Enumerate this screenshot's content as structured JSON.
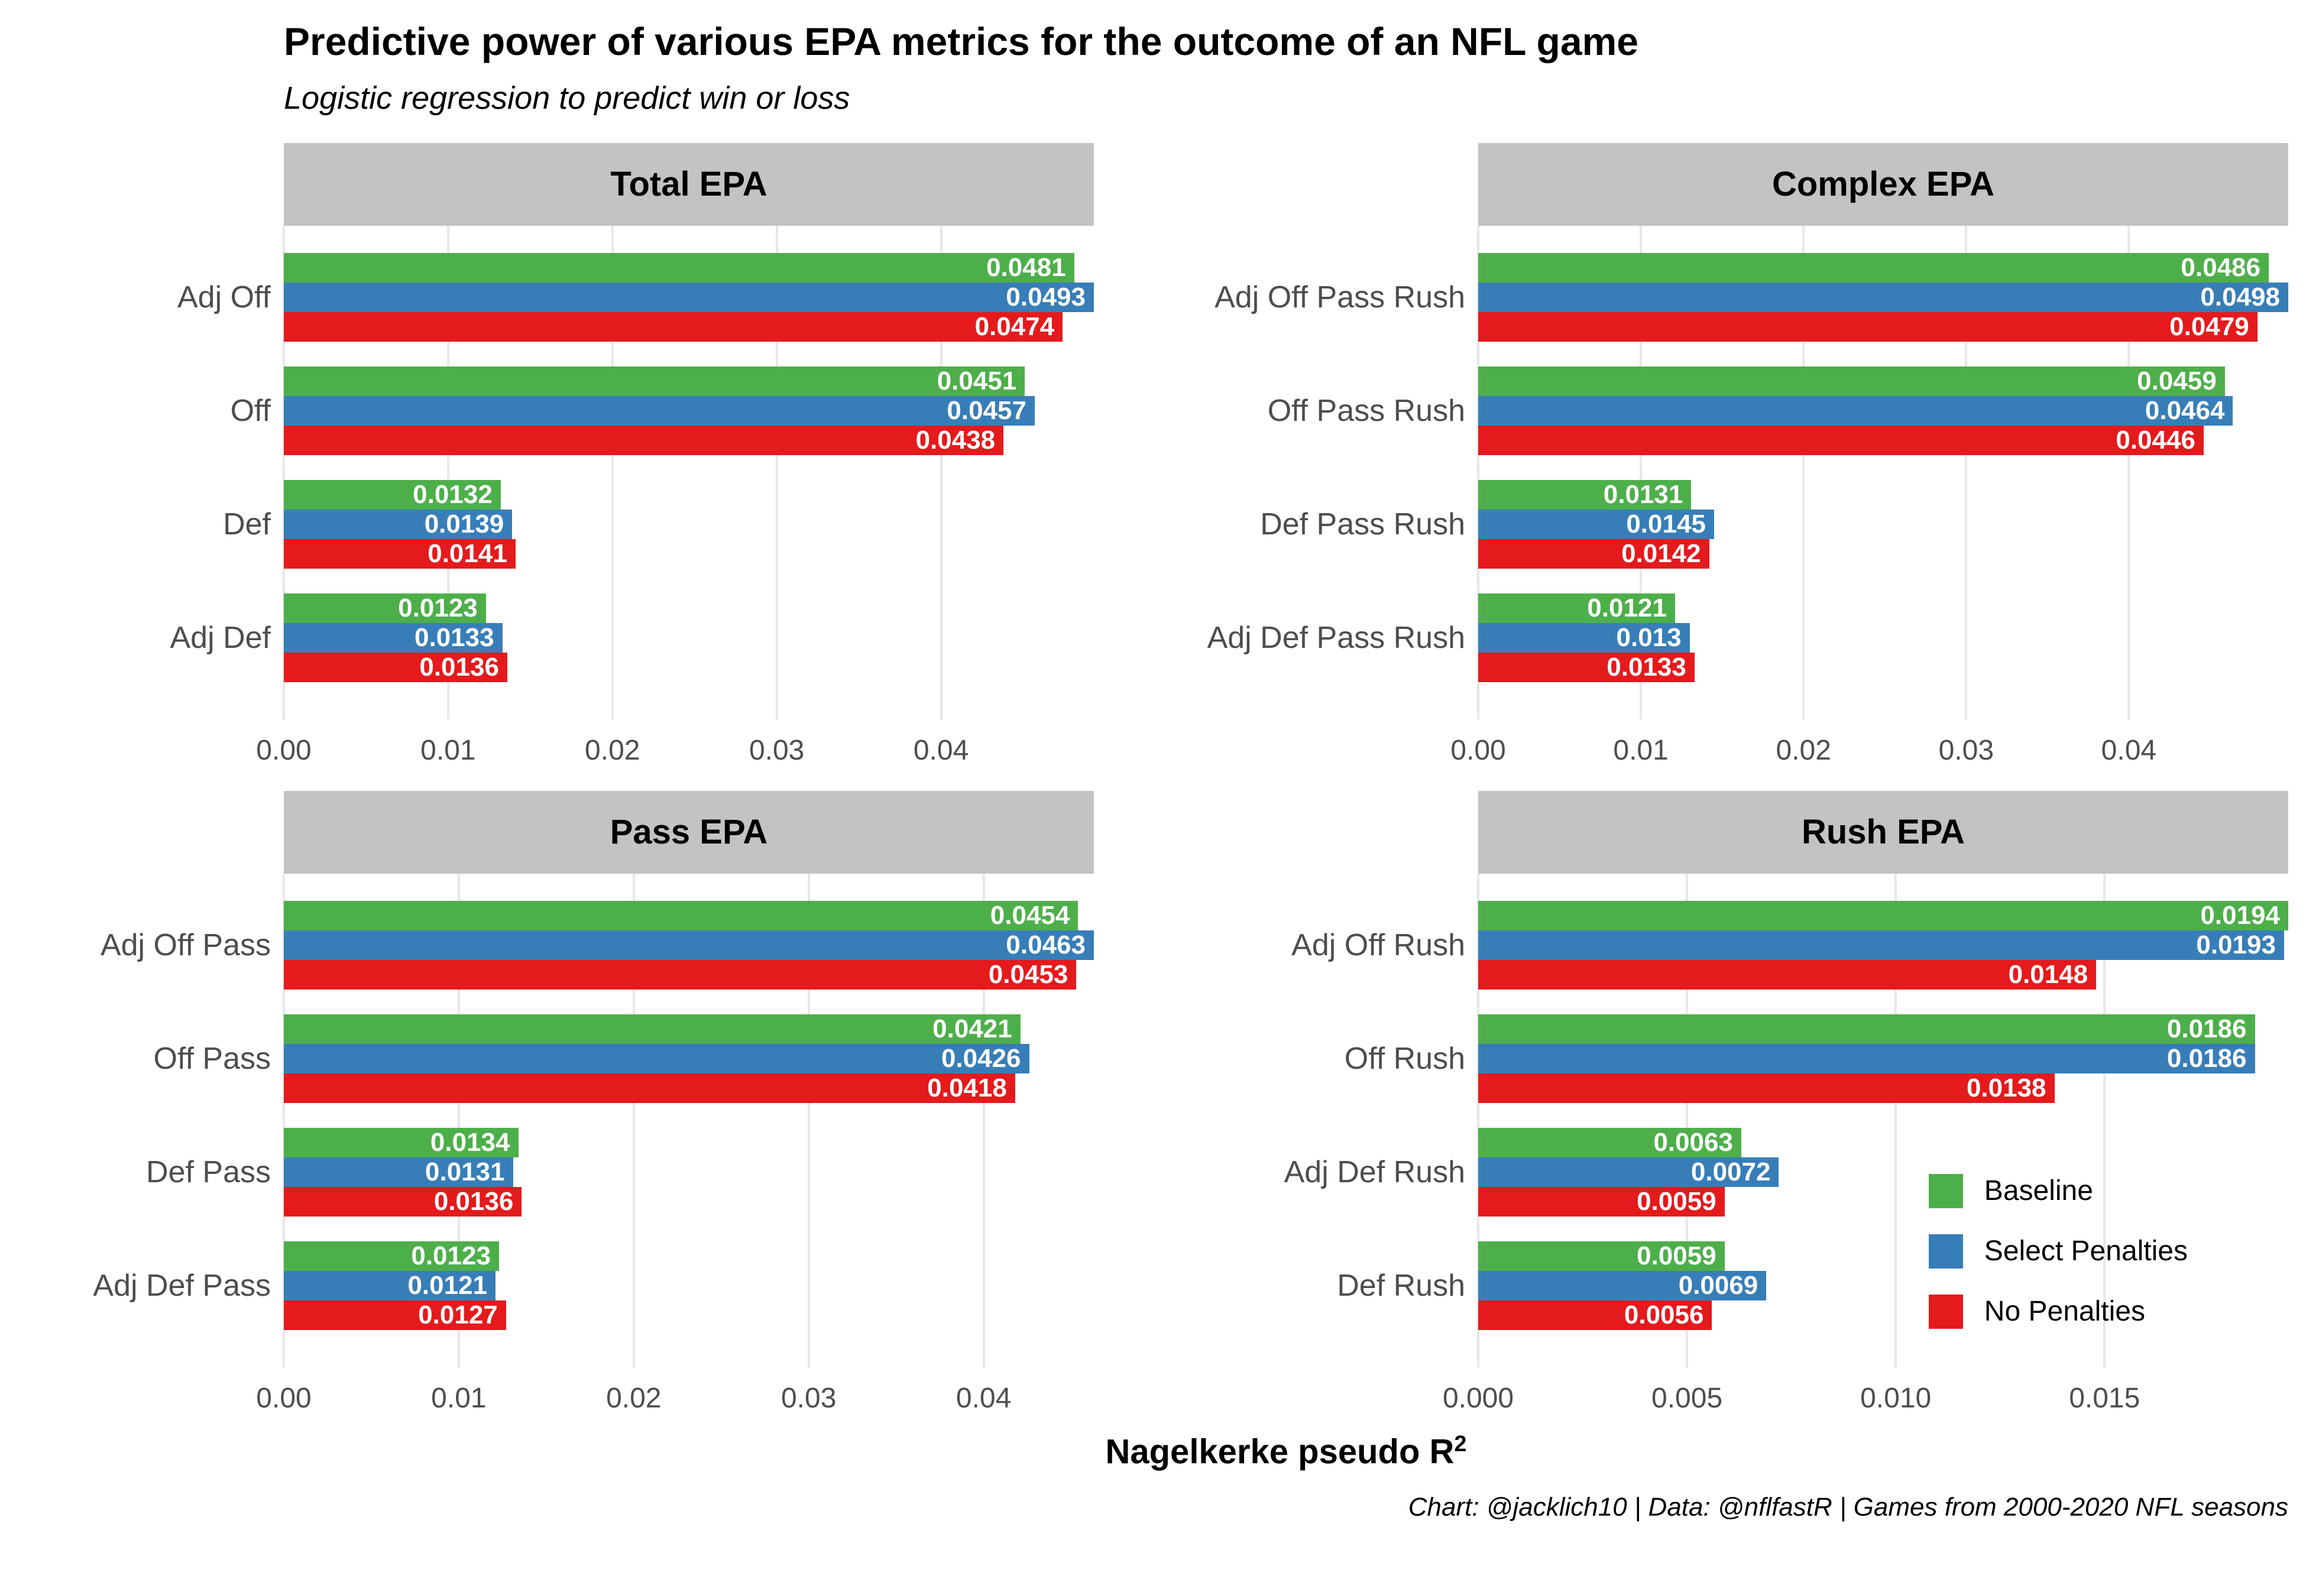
{
  "header": {
    "title": "Predictive power of various EPA metrics for the outcome of an NFL game",
    "subtitle": "Logistic regression to predict win or loss"
  },
  "axis": {
    "xlabel": "Nagelkerke pseudo R",
    "xlabel_sup": "2"
  },
  "caption": "Chart: @jacklich10 | Data: @nflfastR | Games from 2000-2020 NFL seasons",
  "legend": {
    "position": "inside Rush EPA panel, bottom right",
    "items": [
      {
        "label": "Baseline",
        "color": "#4daf4a"
      },
      {
        "label": "Select Penalties",
        "color": "#377eb8"
      },
      {
        "label": "No Penalties",
        "color": "#e41a1c"
      }
    ]
  },
  "style": {
    "strip_background": "#c3c3c3",
    "gridline_color": "#e7e7e7",
    "axis_text_color": "#4d4d4d",
    "value_label_color": "#ffffff"
  },
  "chart_data": [
    {
      "type": "bar",
      "orientation": "horizontal",
      "title": "Total EPA",
      "categories": [
        "Adj Off",
        "Off",
        "Def",
        "Adj Def"
      ],
      "series": [
        {
          "name": "Baseline",
          "values": [
            0.0481,
            0.0451,
            0.0132,
            0.0123
          ],
          "labels": [
            "0.0481",
            "0.0451",
            "0.0132",
            "0.0123"
          ]
        },
        {
          "name": "Select Penalties",
          "values": [
            0.0493,
            0.0457,
            0.0139,
            0.0133
          ],
          "labels": [
            "0.0493",
            "0.0457",
            "0.0139",
            "0.0133"
          ]
        },
        {
          "name": "No Penalties",
          "values": [
            0.0474,
            0.0438,
            0.0141,
            0.0136
          ],
          "labels": [
            "0.0474",
            "0.0438",
            "0.0141",
            "0.0136"
          ]
        }
      ],
      "xticks": [
        0,
        0.01,
        0.02,
        0.03,
        0.04
      ],
      "xtick_labels": [
        "0.00",
        "0.01",
        "0.02",
        "0.03",
        "0.04"
      ],
      "xmax": 0.0493,
      "grid": "major vertical only"
    },
    {
      "type": "bar",
      "orientation": "horizontal",
      "title": "Complex EPA",
      "categories": [
        "Adj Off Pass Rush",
        "Off Pass Rush",
        "Def Pass Rush",
        "Adj Def Pass Rush"
      ],
      "series": [
        {
          "name": "Baseline",
          "values": [
            0.0486,
            0.0459,
            0.0131,
            0.0121
          ],
          "labels": [
            "0.0486",
            "0.0459",
            "0.0131",
            "0.0121"
          ]
        },
        {
          "name": "Select Penalties",
          "values": [
            0.0498,
            0.0464,
            0.0145,
            0.013
          ],
          "labels": [
            "0.0498",
            "0.0464",
            "0.0145",
            "0.013"
          ]
        },
        {
          "name": "No Penalties",
          "values": [
            0.0479,
            0.0446,
            0.0142,
            0.0133
          ],
          "labels": [
            "0.0479",
            "0.0446",
            "0.0142",
            "0.0133"
          ]
        }
      ],
      "xticks": [
        0,
        0.01,
        0.02,
        0.03,
        0.04
      ],
      "xtick_labels": [
        "0.00",
        "0.01",
        "0.02",
        "0.03",
        "0.04"
      ],
      "xmax": 0.0498,
      "grid": "major vertical only"
    },
    {
      "type": "bar",
      "orientation": "horizontal",
      "title": "Pass EPA",
      "categories": [
        "Adj Off Pass",
        "Off Pass",
        "Def Pass",
        "Adj Def Pass"
      ],
      "series": [
        {
          "name": "Baseline",
          "values": [
            0.0454,
            0.0421,
            0.0134,
            0.0123
          ],
          "labels": [
            "0.0454",
            "0.0421",
            "0.0134",
            "0.0123"
          ]
        },
        {
          "name": "Select Penalties",
          "values": [
            0.0463,
            0.0426,
            0.0131,
            0.0121
          ],
          "labels": [
            "0.0463",
            "0.0426",
            "0.0131",
            "0.0121"
          ]
        },
        {
          "name": "No Penalties",
          "values": [
            0.0453,
            0.0418,
            0.0136,
            0.0127
          ],
          "labels": [
            "0.0453",
            "0.0418",
            "0.0136",
            "0.0127"
          ]
        }
      ],
      "xticks": [
        0,
        0.01,
        0.02,
        0.03,
        0.04
      ],
      "xtick_labels": [
        "0.00",
        "0.01",
        "0.02",
        "0.03",
        "0.04"
      ],
      "xmax": 0.0463,
      "grid": "major vertical only"
    },
    {
      "type": "bar",
      "orientation": "horizontal",
      "title": "Rush EPA",
      "categories": [
        "Adj Off Rush",
        "Off Rush",
        "Adj Def Rush",
        "Def Rush"
      ],
      "series": [
        {
          "name": "Baseline",
          "values": [
            0.0194,
            0.0186,
            0.0063,
            0.0059
          ],
          "labels": [
            "0.0194",
            "0.0186",
            "0.0063",
            "0.0059"
          ]
        },
        {
          "name": "Select Penalties",
          "values": [
            0.0193,
            0.0186,
            0.0072,
            0.0069
          ],
          "labels": [
            "0.0193",
            "0.0186",
            "0.0072",
            "0.0069"
          ]
        },
        {
          "name": "No Penalties",
          "values": [
            0.0148,
            0.0138,
            0.0059,
            0.0056
          ],
          "labels": [
            "0.0148",
            "0.0138",
            "0.0059",
            "0.0056"
          ]
        }
      ],
      "xticks": [
        0,
        0.005,
        0.01,
        0.015
      ],
      "xtick_labels": [
        "0.000",
        "0.005",
        "0.010",
        "0.015"
      ],
      "xmax": 0.0194,
      "grid": "major vertical only"
    }
  ]
}
